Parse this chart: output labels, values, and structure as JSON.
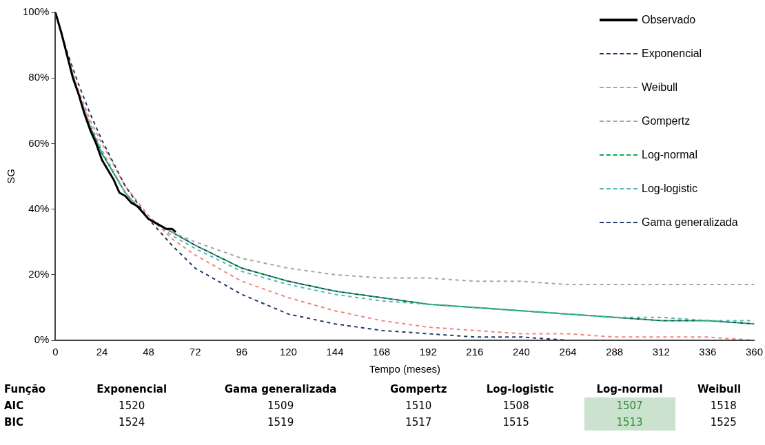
{
  "chart_data": [
    {
      "type": "line",
      "ylabel": "SG",
      "xlabel": "Tempo (meses)",
      "xlim": [
        0,
        360
      ],
      "xticks": [
        0,
        24,
        48,
        72,
        96,
        120,
        144,
        168,
        192,
        216,
        240,
        264,
        288,
        312,
        336,
        360
      ],
      "ylim": [
        0,
        100
      ],
      "yticks": [
        {
          "value": 0,
          "label": "0%"
        },
        {
          "value": 20,
          "label": "20%"
        },
        {
          "value": 40,
          "label": "40%"
        },
        {
          "value": 60,
          "label": "60%"
        },
        {
          "value": 80,
          "label": "80%"
        },
        {
          "value": 100,
          "label": "100%"
        }
      ],
      "grid": false,
      "legend": "top right",
      "marker": "none",
      "series": [
        {
          "name": "Observado",
          "color": "#000000",
          "line_style": "solid",
          "x": [
            0,
            3,
            6,
            9,
            12,
            15,
            18,
            21,
            24,
            27,
            30,
            33,
            36,
            39,
            42,
            45,
            48,
            51,
            54,
            57,
            60,
            62
          ],
          "values": [
            100,
            94,
            87,
            80,
            75,
            69,
            64,
            60,
            55,
            52,
            49,
            45,
            44,
            42,
            41,
            39,
            37,
            36,
            35,
            34,
            34,
            33
          ]
        },
        {
          "name": "Exponencial",
          "color": "#1f3864",
          "line_style": "dashed",
          "x": [
            0,
            6,
            12,
            18,
            24,
            36,
            48,
            60,
            72,
            96,
            120,
            144,
            168,
            192,
            216,
            240,
            264,
            288,
            312,
            336,
            360
          ],
          "values": [
            100,
            88,
            78,
            69,
            61,
            47,
            37,
            29,
            22,
            14,
            8,
            5,
            3,
            2,
            1,
            1,
            0,
            0,
            0,
            0,
            0
          ]
        },
        {
          "name": "Weibull",
          "color": "#f4837d",
          "line_style": "dashed",
          "x": [
            0,
            6,
            12,
            18,
            24,
            36,
            48,
            60,
            72,
            96,
            120,
            144,
            168,
            192,
            216,
            240,
            264,
            288,
            312,
            336,
            360
          ],
          "values": [
            100,
            87,
            76,
            67,
            60,
            47,
            38,
            31,
            26,
            18,
            13,
            9,
            6,
            4,
            3,
            2,
            2,
            1,
            1,
            1,
            0
          ]
        },
        {
          "name": "Gompertz",
          "color": "#a6a6a6",
          "line_style": "dashed",
          "x": [
            0,
            6,
            12,
            18,
            24,
            36,
            48,
            60,
            72,
            96,
            120,
            144,
            168,
            192,
            216,
            240,
            264,
            288,
            312,
            336,
            360
          ],
          "values": [
            100,
            87,
            75,
            66,
            58,
            45,
            37,
            33,
            30,
            25,
            22,
            20,
            19,
            19,
            18,
            18,
            17,
            17,
            17,
            17,
            17
          ]
        },
        {
          "name": "Log-normal",
          "color": "#00b050",
          "line_style": "dashed",
          "x": [
            0,
            6,
            12,
            18,
            24,
            36,
            48,
            60,
            72,
            96,
            120,
            144,
            168,
            192,
            216,
            240,
            264,
            288,
            312,
            336,
            360
          ],
          "values": [
            100,
            87,
            75,
            65,
            57,
            45,
            37,
            33,
            29,
            22,
            18,
            15,
            13,
            11,
            10,
            9,
            8,
            7,
            6,
            6,
            5
          ]
        },
        {
          "name": "Log-logistic",
          "color": "#5ab5b0",
          "line_style": "dashed",
          "x": [
            0,
            6,
            12,
            18,
            24,
            36,
            48,
            60,
            72,
            96,
            120,
            144,
            168,
            192,
            216,
            240,
            264,
            288,
            312,
            336,
            360
          ],
          "values": [
            100,
            87,
            75,
            65,
            57,
            45,
            37,
            32,
            28,
            21,
            17,
            14,
            12,
            11,
            10,
            9,
            8,
            7,
            7,
            6,
            6
          ]
        },
        {
          "name": "Gama generalizada",
          "color": "#1f3864",
          "line_style": "dashed",
          "x": [
            0,
            6,
            12,
            18,
            24,
            36,
            48,
            60,
            72,
            96,
            120,
            144,
            168,
            192,
            216,
            240,
            264,
            288,
            312,
            336,
            360
          ],
          "values": [
            100,
            87,
            75,
            65,
            57,
            45,
            37,
            33,
            29,
            22,
            18,
            15,
            13,
            11,
            10,
            9,
            8,
            7,
            6,
            6,
            5
          ]
        }
      ]
    },
    {
      "type": "other",
      "xlabel": "Função",
      "categories": [
        "AIC",
        "BIC"
      ],
      "data_labels": true,
      "series": [
        {
          "name": "Exponencial",
          "values": [
            1520,
            1524
          ]
        },
        {
          "name": "Gama generalizada",
          "values": [
            1509,
            1519
          ]
        },
        {
          "name": "Gompertz",
          "values": [
            1510,
            1517
          ]
        },
        {
          "name": "Log-logistic",
          "values": [
            1508,
            1515
          ]
        },
        {
          "name": "Log-normal",
          "color": "#2e8b3a",
          "values": [
            1507,
            1513
          ]
        },
        {
          "name": "Weibull",
          "values": [
            1518,
            1525
          ]
        }
      ]
    }
  ]
}
